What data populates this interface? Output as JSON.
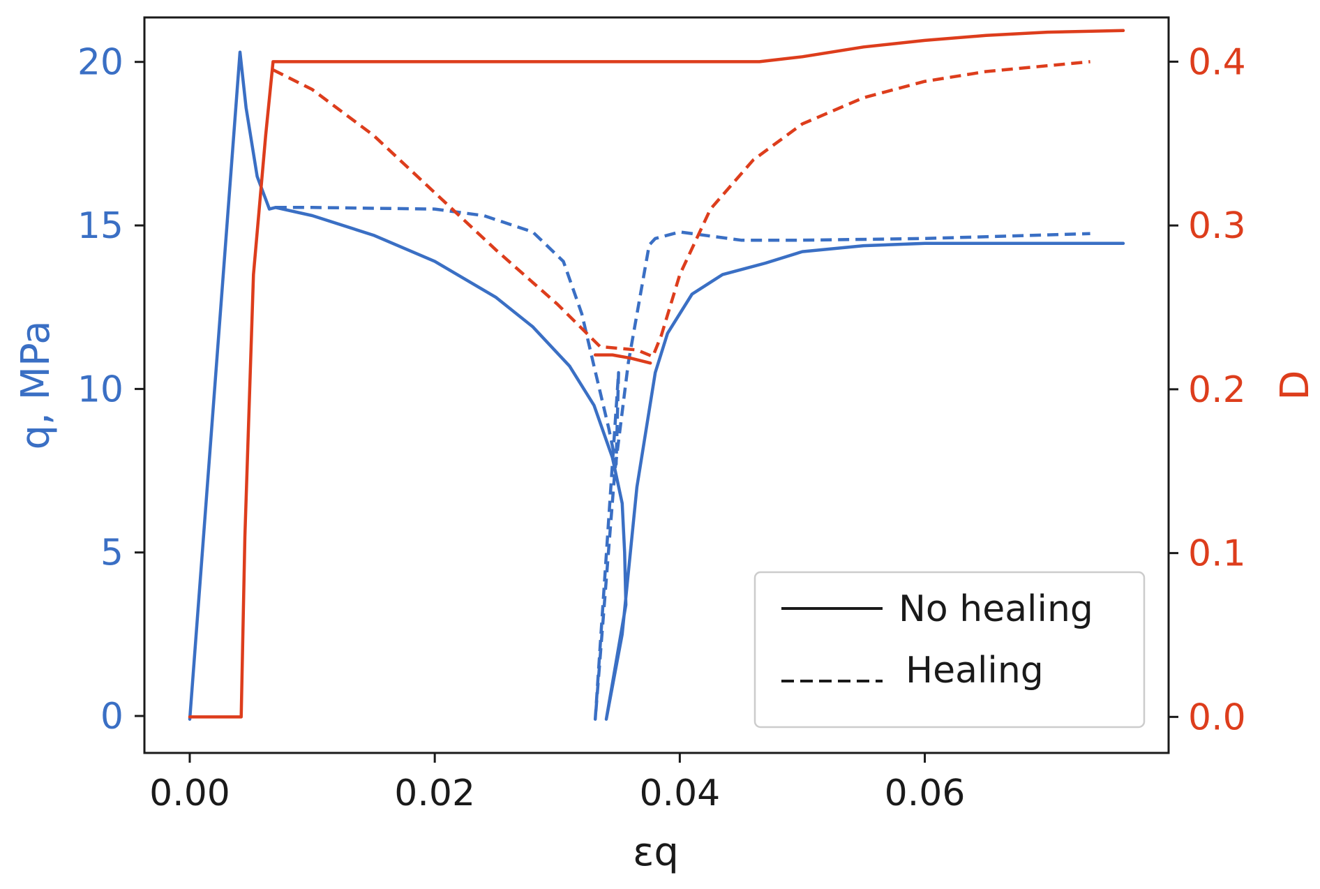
{
  "chart_data": {
    "type": "line",
    "xlabel": "εq",
    "ylabel_left": "q,  MPa",
    "ylabel_right": "D",
    "xlim": [
      -0.0037,
      0.0799
    ],
    "ylim_left": [
      -1.13,
      21.36
    ],
    "ylim_right": [
      -0.022,
      0.427
    ],
    "x_ticks": [
      "0.00",
      "0.02",
      "0.04",
      "0.06"
    ],
    "x_tick_values": [
      0,
      0.02,
      0.04,
      0.06
    ],
    "y_left_ticks": [
      "0",
      "5",
      "10",
      "15",
      "20"
    ],
    "y_left_tick_values": [
      0,
      5,
      10,
      15,
      20
    ],
    "y_right_ticks": [
      "0.0",
      "0.1",
      "0.2",
      "0.3",
      "0.4"
    ],
    "y_right_tick_values": [
      0,
      0.1,
      0.2,
      0.3,
      0.4
    ],
    "colors": {
      "q": "#3a6fc4",
      "D": "#dd3d1c",
      "axis": "#1a1a1a"
    },
    "legend": {
      "position": "lower-right",
      "entries": [
        {
          "label": "No healing",
          "style": "solid"
        },
        {
          "label": "Healing",
          "style": "dashed"
        }
      ]
    },
    "series": [
      {
        "axis": "left",
        "style": "solid",
        "points": [
          [
            0,
            -0.1
          ],
          [
            0.0041,
            20.3
          ],
          [
            0.0046,
            18.6
          ],
          [
            0.0055,
            16.5
          ],
          [
            0.0065,
            15.5
          ],
          [
            0.007,
            15.55
          ],
          [
            0.01,
            15.3
          ],
          [
            0.015,
            14.7
          ],
          [
            0.02,
            13.9
          ],
          [
            0.025,
            12.8
          ],
          [
            0.028,
            11.9
          ],
          [
            0.031,
            10.7
          ],
          [
            0.033,
            9.5
          ],
          [
            0.0345,
            7.9
          ],
          [
            0.0353,
            6.5
          ],
          [
            0.0355,
            5.0
          ],
          [
            0.0356,
            3.4
          ],
          [
            0.034,
            -0.1
          ],
          [
            0.0353,
            2.5
          ],
          [
            0.0365,
            7.0
          ],
          [
            0.038,
            10.5
          ],
          [
            0.039,
            11.7
          ],
          [
            0.041,
            12.9
          ],
          [
            0.0435,
            13.5
          ],
          [
            0.047,
            13.85
          ],
          [
            0.05,
            14.2
          ],
          [
            0.055,
            14.38
          ],
          [
            0.06,
            14.45
          ],
          [
            0.07,
            14.45
          ],
          [
            0.0762,
            14.45
          ]
        ]
      },
      {
        "axis": "left",
        "style": "dashed",
        "points": [
          [
            0.007,
            15.55
          ],
          [
            0.01,
            15.55
          ],
          [
            0.02,
            15.5
          ],
          [
            0.024,
            15.3
          ],
          [
            0.028,
            14.8
          ],
          [
            0.0305,
            13.9
          ],
          [
            0.032,
            12.3
          ],
          [
            0.033,
            10.7
          ],
          [
            0.0342,
            8.8
          ],
          [
            0.0348,
            7.7
          ],
          [
            0.035,
            10.5
          ],
          [
            0.0331,
            -0.1
          ],
          [
            0.0347,
            7.5
          ],
          [
            0.0358,
            10.8
          ],
          [
            0.0375,
            14.4
          ],
          [
            0.038,
            14.6
          ],
          [
            0.04,
            14.8
          ],
          [
            0.045,
            14.55
          ],
          [
            0.05,
            14.55
          ],
          [
            0.06,
            14.6
          ],
          [
            0.0735,
            14.75
          ]
        ]
      },
      {
        "axis": "right",
        "style": "solid",
        "points": [
          [
            0,
            0
          ],
          [
            0.0042,
            0
          ],
          [
            0.0045,
            0.11
          ],
          [
            0.0052,
            0.27
          ],
          [
            0.0062,
            0.355
          ],
          [
            0.0068,
            0.4
          ],
          [
            0.02,
            0.4
          ],
          [
            0.04,
            0.4
          ],
          [
            0.0465,
            0.4
          ],
          [
            0.05,
            0.403
          ],
          [
            0.055,
            0.409
          ],
          [
            0.06,
            0.413
          ],
          [
            0.065,
            0.416
          ],
          [
            0.07,
            0.418
          ],
          [
            0.0762,
            0.419
          ]
        ]
      },
      {
        "axis": "right",
        "style": "dashed",
        "points": [
          [
            0.0068,
            0.395
          ],
          [
            0.01,
            0.383
          ],
          [
            0.015,
            0.355
          ],
          [
            0.02,
            0.32
          ],
          [
            0.025,
            0.285
          ],
          [
            0.03,
            0.252
          ],
          [
            0.0335,
            0.226
          ],
          [
            0.0365,
            0.224
          ],
          [
            0.0378,
            0.22
          ],
          [
            0.0385,
            0.233
          ],
          [
            0.04,
            0.27
          ],
          [
            0.0425,
            0.31
          ],
          [
            0.046,
            0.34
          ],
          [
            0.05,
            0.362
          ],
          [
            0.055,
            0.378
          ],
          [
            0.06,
            0.388
          ],
          [
            0.065,
            0.394
          ],
          [
            0.0735,
            0.4
          ]
        ]
      },
      {
        "axis": "right",
        "style": "solid",
        "points": [
          [
            0.0331,
            0.221
          ],
          [
            0.0345,
            0.221
          ],
          [
            0.036,
            0.219
          ],
          [
            0.0376,
            0.216
          ]
        ]
      }
    ]
  }
}
